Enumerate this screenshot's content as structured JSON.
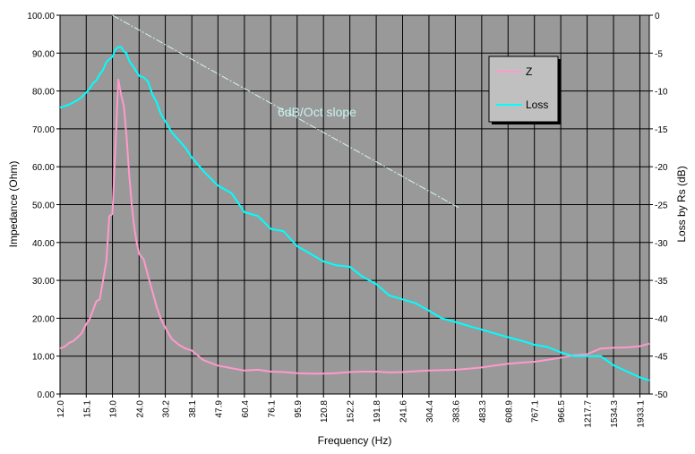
{
  "chart_data": {
    "type": "line",
    "xlabel": "Frequency (Hz)",
    "ylabel_left": "Impedance (Ohm)",
    "ylabel_right": "Loss by Rs (dB)",
    "x_scale": "log",
    "x_ticks": [
      "12.0",
      "15.1",
      "19.0",
      "24.0",
      "30.2",
      "38.1",
      "47.9",
      "60.4",
      "76.1",
      "95.9",
      "120.8",
      "152.2",
      "191.8",
      "241.6",
      "304.4",
      "383.6",
      "483.3",
      "608.9",
      "767.1",
      "966.5",
      "1217.7",
      "1534.3",
      "1933.1"
    ],
    "ylim_left": [
      0,
      100
    ],
    "ylim_right": [
      -50,
      0
    ],
    "y_ticks_left": [
      "0.00",
      "10.00",
      "20.00",
      "30.00",
      "40.00",
      "50.00",
      "60.00",
      "70.00",
      "80.00",
      "90.00",
      "100.00"
    ],
    "y_ticks_right": [
      "-50",
      "-45",
      "-40",
      "-35",
      "-30",
      "-25",
      "-20",
      "-15",
      "-10",
      "-5",
      "0"
    ],
    "grid": true,
    "legend_position": "top-right",
    "colors": {
      "plot_bg": "#999999",
      "grid": "#000000",
      "impedance": "#ff99cc",
      "loss": "#00ffff",
      "slope": "#d6f5f0"
    },
    "annotation": "6dB/Oct slope",
    "slope_line": {
      "x": [
        19.0,
        400.0
      ],
      "y_right": [
        0,
        -25.5
      ]
    },
    "series": [
      {
        "name": "Z",
        "axis": "left",
        "x": [
          12.0,
          12.5,
          13.0,
          13.5,
          14.0,
          14.5,
          15.1,
          15.5,
          16.0,
          16.5,
          17.0,
          17.5,
          18.0,
          18.5,
          19.0,
          19.5,
          20.0,
          20.5,
          21.0,
          21.5,
          22.0,
          22.5,
          23.0,
          23.5,
          24.0,
          25.0,
          26.0,
          27.0,
          28.0,
          29.0,
          30.2,
          32.0,
          34.0,
          36.0,
          38.1,
          42.0,
          47.9,
          54.0,
          60.4,
          68.0,
          76.1,
          85.0,
          95.9,
          108.0,
          120.8,
          135.0,
          152.2,
          170.0,
          191.8,
          215.0,
          241.6,
          270.0,
          304.4,
          340.0,
          383.6,
          430.0,
          483.3,
          540.0,
          608.9,
          690.0,
          767.1,
          860.0,
          966.5,
          1080.0,
          1217.7,
          1370.0,
          1534.3,
          1720.0,
          1933.1,
          2100.0
        ],
        "values": [
          12.0,
          12.5,
          13.5,
          14.0,
          15.0,
          16.0,
          18.5,
          19.5,
          22.0,
          24.5,
          25.0,
          30.0,
          35.0,
          47.0,
          47.5,
          65.0,
          83.0,
          79.0,
          76.0,
          68.0,
          58.0,
          50.0,
          44.0,
          40.0,
          37.0,
          35.5,
          31.0,
          27.0,
          23.0,
          20.0,
          17.5,
          14.5,
          13.0,
          12.0,
          11.5,
          9.0,
          7.5,
          6.8,
          6.2,
          6.4,
          5.9,
          5.8,
          5.5,
          5.4,
          5.4,
          5.5,
          5.8,
          5.9,
          5.9,
          5.7,
          5.8,
          6.0,
          6.2,
          6.3,
          6.4,
          6.7,
          7.0,
          7.5,
          8.0,
          8.3,
          8.5,
          9.0,
          9.6,
          10.2,
          10.5,
          12.0,
          12.2,
          12.3,
          12.6,
          13.3
        ]
      },
      {
        "name": "Loss",
        "axis": "right",
        "x": [
          12.0,
          12.5,
          13.0,
          13.5,
          14.0,
          14.5,
          15.1,
          15.5,
          16.0,
          16.5,
          17.0,
          17.5,
          18.0,
          18.5,
          19.0,
          19.5,
          20.0,
          20.5,
          21.0,
          21.5,
          22.0,
          23.0,
          24.0,
          25.0,
          26.0,
          27.0,
          28.0,
          29.0,
          30.2,
          32.0,
          34.0,
          36.0,
          38.1,
          42.0,
          47.9,
          54.0,
          60.4,
          68.0,
          76.1,
          85.0,
          95.9,
          108.0,
          120.8,
          135.0,
          152.2,
          170.0,
          191.8,
          215.0,
          241.6,
          270.0,
          304.4,
          340.0,
          383.6,
          430.0,
          483.3,
          540.0,
          608.9,
          690.0,
          767.1,
          860.0,
          966.5,
          1080.0,
          1217.7,
          1370.0,
          1534.3,
          1720.0,
          1933.1,
          2100.0
        ],
        "values": [
          -12.2,
          -12.0,
          -11.8,
          -11.5,
          -11.2,
          -10.8,
          -10.2,
          -9.8,
          -9.0,
          -8.6,
          -7.8,
          -7.2,
          -6.2,
          -5.8,
          -5.5,
          -4.5,
          -4.2,
          -4.2,
          -4.8,
          -5.0,
          -6.0,
          -7.0,
          -8.0,
          -8.2,
          -8.8,
          -10.5,
          -11.5,
          -13.0,
          -14.0,
          -15.5,
          -16.5,
          -17.5,
          -18.8,
          -20.5,
          -22.5,
          -23.5,
          -26.0,
          -26.5,
          -28.2,
          -28.5,
          -30.5,
          -31.5,
          -32.5,
          -33.0,
          -33.2,
          -34.5,
          -35.5,
          -37.0,
          -37.5,
          -38.0,
          -39.0,
          -40.0,
          -40.5,
          -41.0,
          -41.5,
          -42.0,
          -42.5,
          -43.0,
          -43.5,
          -43.8,
          -44.5,
          -45.0,
          -45.0,
          -45.0,
          -46.2,
          -47.0,
          -47.8,
          -48.2
        ]
      }
    ]
  }
}
